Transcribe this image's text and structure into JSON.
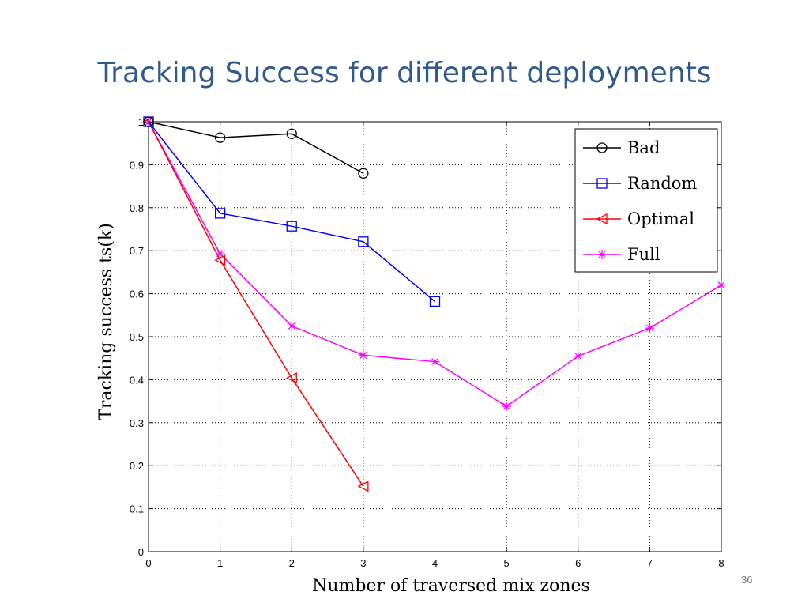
{
  "slide": {
    "title": "Tracking Success for different deployments",
    "page_number": "36"
  },
  "chart_data": {
    "type": "line",
    "title": "",
    "xlabel": "Number of traversed mix zones",
    "ylabel": "Tracking success ts(k)",
    "xlim": [
      0,
      8
    ],
    "ylim": [
      0,
      1
    ],
    "xticks": [
      0,
      1,
      2,
      3,
      4,
      5,
      6,
      7,
      8
    ],
    "yticks": [
      0,
      0.1,
      0.2,
      0.3,
      0.4,
      0.5,
      0.6,
      0.7,
      0.8,
      0.9,
      1
    ],
    "grid": true,
    "legend_position": "top-right",
    "series": [
      {
        "name": "Bad",
        "color": "#000000",
        "marker": "circle",
        "x": [
          0,
          1,
          2,
          3
        ],
        "y": [
          1.0,
          0.963,
          0.972,
          0.88
        ]
      },
      {
        "name": "Random",
        "color": "#0000ff",
        "marker": "square",
        "x": [
          0,
          1,
          2,
          3,
          4
        ],
        "y": [
          1.0,
          0.787,
          0.757,
          0.721,
          0.582
        ]
      },
      {
        "name": "Optimal",
        "color": "#ff0000",
        "marker": "triangle-left",
        "x": [
          0,
          1,
          2,
          3
        ],
        "y": [
          1.0,
          0.678,
          0.404,
          0.152
        ]
      },
      {
        "name": "Full",
        "color": "#ff00ff",
        "marker": "star",
        "x": [
          0,
          1,
          2,
          3,
          4,
          5,
          6,
          7,
          8
        ],
        "y": [
          1.0,
          0.693,
          0.525,
          0.457,
          0.442,
          0.338,
          0.455,
          0.52,
          0.62
        ]
      }
    ]
  }
}
